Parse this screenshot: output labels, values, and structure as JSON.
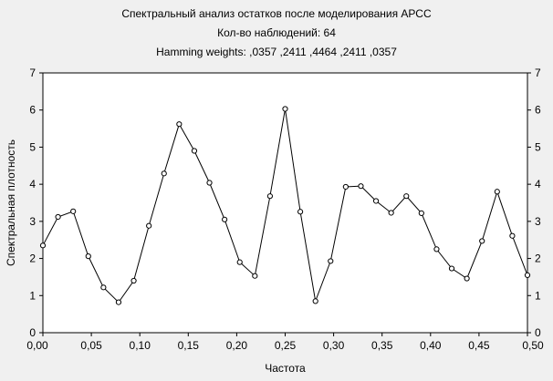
{
  "chart_data": {
    "type": "line",
    "title": "Спектральный анализ остатков после моделирования АРСС",
    "subtitle": "Кол-во наблюдений: 64",
    "note": "Hamming weights: ,0357 ,2411 ,4464 ,2411 ,0357",
    "xlabel": "Частота",
    "ylabel": "Спектральная плотность",
    "xlim": [
      0,
      0.5
    ],
    "ylim": [
      0,
      7
    ],
    "x_ticks": [
      "0,00",
      "0,05",
      "0,10",
      "0,15",
      "0,20",
      "0,25",
      "0,30",
      "0,35",
      "0,40",
      "0,45",
      "0,50"
    ],
    "y_ticks": [
      "0",
      "1",
      "2",
      "3",
      "4",
      "5",
      "6",
      "7"
    ],
    "grid": false,
    "series": [
      {
        "x": [
          0.0,
          0.015625,
          0.03125,
          0.046875,
          0.0625,
          0.078125,
          0.09375,
          0.109375,
          0.125,
          0.140625,
          0.15625,
          0.171875,
          0.1875,
          0.203125,
          0.21875,
          0.234375,
          0.25,
          0.265625,
          0.28125,
          0.296875,
          0.3125,
          0.328125,
          0.34375,
          0.359375,
          0.375,
          0.390625,
          0.40625,
          0.421875,
          0.4375,
          0.453125,
          0.46875,
          0.484375,
          0.5
        ],
        "values": [
          2.35,
          3.12,
          3.27,
          2.06,
          1.22,
          0.82,
          1.4,
          2.88,
          4.29,
          5.62,
          4.9,
          4.04,
          3.05,
          1.9,
          1.53,
          3.68,
          6.03,
          3.26,
          0.85,
          1.93,
          3.93,
          3.95,
          3.55,
          3.23,
          3.68,
          3.22,
          2.25,
          1.73,
          1.46,
          2.47,
          3.8,
          2.61,
          1.55
        ]
      }
    ]
  }
}
